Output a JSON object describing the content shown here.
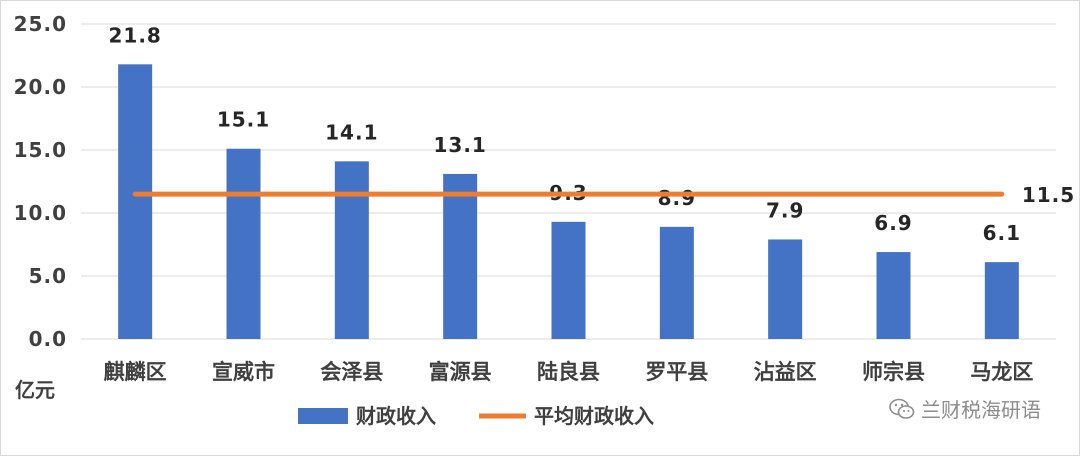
{
  "chart_data": {
    "type": "bar",
    "categories": [
      "麒麟区",
      "宣威市",
      "会泽县",
      "富源县",
      "陆良县",
      "罗平县",
      "沾益区",
      "师宗县",
      "马龙区"
    ],
    "series": [
      {
        "name": "财政收入",
        "type": "bar",
        "color": "#4472C4",
        "values": [
          21.8,
          15.1,
          14.1,
          13.1,
          9.3,
          8.9,
          7.9,
          6.9,
          6.1
        ]
      },
      {
        "name": "平均财政收入",
        "type": "line",
        "color": "#ED7D31",
        "values": [
          11.5,
          11.5,
          11.5,
          11.5,
          11.5,
          11.5,
          11.5,
          11.5,
          11.5
        ]
      }
    ],
    "data_labels": [
      "21.8",
      "15.1",
      "14.1",
      "13.1",
      "9.3",
      "8.9",
      "7.9",
      "6.9",
      "6.1"
    ],
    "average_label": "11.5",
    "ylabel": "亿元",
    "ylim": [
      0,
      25
    ],
    "yticks": [
      "0.0",
      "5.0",
      "10.0",
      "15.0",
      "20.0",
      "25.0"
    ],
    "ytick_values": [
      0,
      5,
      10,
      15,
      20,
      25
    ],
    "grid": true,
    "legend_position": "bottom"
  },
  "watermark": {
    "text": "兰财税海研语",
    "icon": "wechat-icon"
  }
}
